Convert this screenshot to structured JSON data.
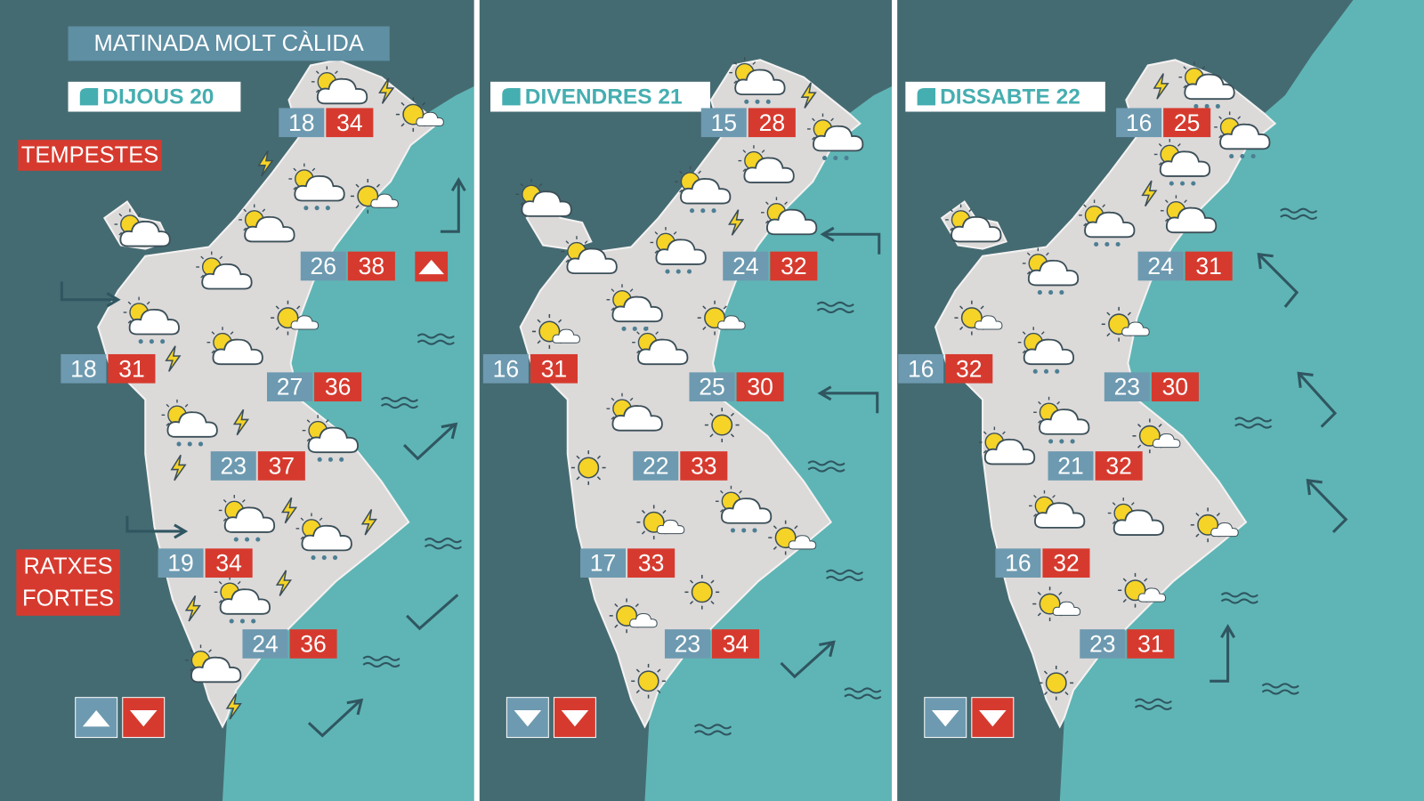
{
  "header": {
    "title": "MATINADA MOLT CÀLIDA"
  },
  "labels": {
    "storms": "TEMPESTES",
    "gusts": [
      "RATXES",
      "FORTES"
    ]
  },
  "panels": [
    {
      "day": "DIJOUS 20",
      "temps": [
        [
          18,
          34
        ],
        [
          26,
          38
        ],
        [
          18,
          31
        ],
        [
          27,
          36
        ],
        [
          23,
          37
        ],
        [
          19,
          34
        ],
        [
          24,
          36
        ]
      ]
    },
    {
      "day": "DIVENDRES 21",
      "temps": [
        [
          15,
          28
        ],
        [
          24,
          32
        ],
        [
          16,
          31
        ],
        [
          25,
          30
        ],
        [
          22,
          33
        ],
        [
          17,
          33
        ],
        [
          23,
          34
        ]
      ]
    },
    {
      "day": "DISSABTE 22",
      "temps": [
        [
          16,
          25
        ],
        [
          24,
          31
        ],
        [
          16,
          32
        ],
        [
          23,
          30
        ],
        [
          21,
          32
        ],
        [
          16,
          32
        ],
        [
          23,
          31
        ]
      ]
    }
  ]
}
